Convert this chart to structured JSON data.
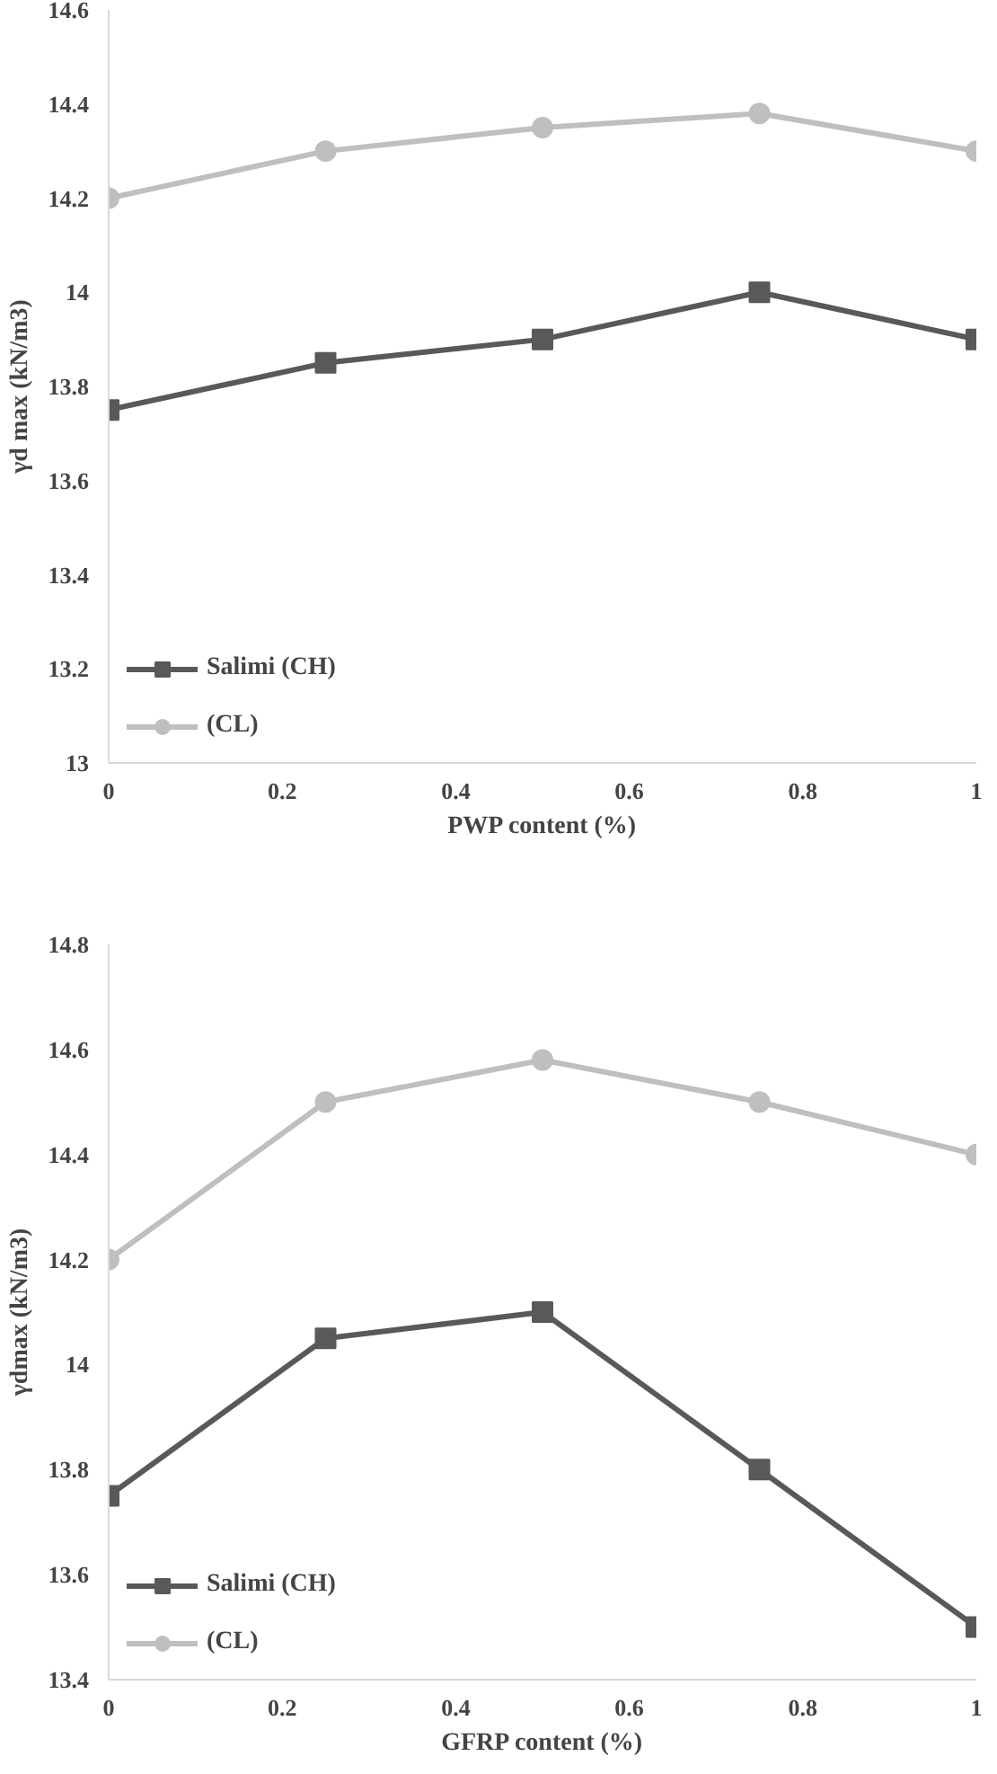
{
  "chart_data": [
    {
      "type": "line",
      "xlabel": "PWP content (%)",
      "ylabel": "γd max (kN/m3)",
      "x": [
        0,
        0.25,
        0.5,
        0.75,
        1
      ],
      "series": [
        {
          "name": "Salimi (CH)",
          "color": "#595959",
          "values": [
            13.75,
            13.85,
            13.9,
            14.0,
            13.9
          ]
        },
        {
          "name": "(CL)",
          "color": "#bfbfbf",
          "marker": "circle",
          "values": [
            14.2,
            14.3,
            14.35,
            14.38,
            14.3
          ]
        }
      ],
      "xlim": [
        0,
        1
      ],
      "xticks": [
        0,
        0.2,
        0.4,
        0.6,
        0.8,
        1
      ],
      "ylim": [
        13,
        14.6
      ],
      "yticks": [
        13,
        13.2,
        13.4,
        13.6,
        13.8,
        14,
        14.2,
        14.4,
        14.6
      ],
      "grid": false,
      "legend": "bottom left",
      "marker": "square"
    },
    {
      "type": "line",
      "xlabel": "GFRP content (%)",
      "ylabel": "γdmax (kN/m3)",
      "x": [
        0,
        0.25,
        0.5,
        0.75,
        1
      ],
      "series": [
        {
          "name": "Salimi (CH)",
          "color": "#595959",
          "values": [
            13.75,
            14.05,
            14.1,
            13.8,
            13.5
          ]
        },
        {
          "name": "(CL)",
          "color": "#bfbfbf",
          "marker": "circle",
          "values": [
            14.2,
            14.5,
            14.58,
            14.5,
            14.4
          ]
        }
      ],
      "xlim": [
        0,
        1
      ],
      "xticks": [
        0,
        0.2,
        0.4,
        0.6,
        0.8,
        1
      ],
      "ylim": [
        13.4,
        14.8
      ],
      "yticks": [
        13.4,
        13.6,
        13.8,
        14,
        14.2,
        14.4,
        14.6,
        14.8
      ],
      "grid": false,
      "legend": "bottom left",
      "marker": "square"
    }
  ]
}
